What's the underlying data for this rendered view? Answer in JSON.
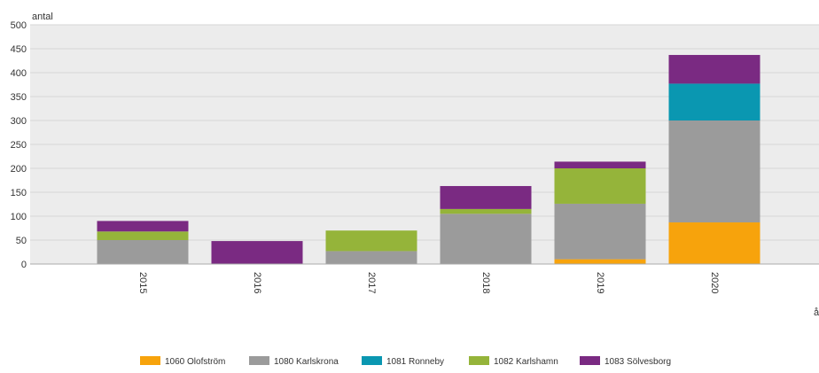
{
  "chart_data": {
    "type": "bar",
    "stacked": true,
    "ylabel": "antal",
    "xlabel": "år",
    "ylim": [
      0,
      500
    ],
    "yticks": [
      0,
      50,
      100,
      150,
      200,
      250,
      300,
      350,
      400,
      450,
      500
    ],
    "grid": true,
    "legend_position": "bottom",
    "categories": [
      "2015",
      "2016",
      "2017",
      "2018",
      "2019",
      "2020"
    ],
    "series": [
      {
        "name": "1060 Olofström",
        "color": "#f7a30c",
        "values": [
          0,
          0,
          0,
          0,
          10,
          87
        ]
      },
      {
        "name": "1080 Karlskrona",
        "color": "#9b9b9b",
        "values": [
          50,
          0,
          27,
          105,
          116,
          213
        ]
      },
      {
        "name": "1081 Ronneby",
        "color": "#0a97b1",
        "values": [
          0,
          0,
          0,
          0,
          0,
          77
        ]
      },
      {
        "name": "1082 Karlshamn",
        "color": "#95b43a",
        "values": [
          18,
          0,
          43,
          10,
          74,
          0
        ]
      },
      {
        "name": "1083 Sölvesborg",
        "color": "#7a2a82",
        "values": [
          22,
          48,
          0,
          48,
          14,
          60
        ]
      }
    ]
  }
}
